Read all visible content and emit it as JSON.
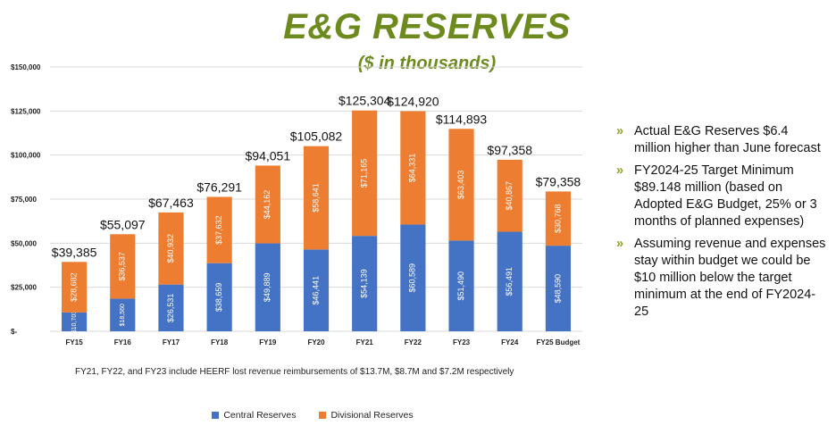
{
  "header": {
    "title": "E&G RESERVES",
    "subtitle": "($ in thousands)"
  },
  "chart_data": {
    "type": "bar",
    "stacked": true,
    "categories": [
      "FY15",
      "FY16",
      "FY17",
      "FY18",
      "FY19",
      "FY20",
      "FY21",
      "FY22",
      "FY23",
      "FY24",
      "FY25 Budget"
    ],
    "series": [
      {
        "name": "Central Reserves",
        "color": "#4472c4",
        "values": [
          10703,
          18560,
          26531,
          38659,
          49889,
          46441,
          54139,
          60589,
          51490,
          56491,
          48590
        ],
        "labels": [
          "$10,703",
          "$18,560",
          "$26,531",
          "$38,659",
          "$49,889",
          "$46,441",
          "$54,139",
          "$60,589",
          "$51,490",
          "$56,491",
          "$48,590"
        ]
      },
      {
        "name": "Divisional Reserves",
        "color": "#ed7d31",
        "values": [
          28682,
          36537,
          40932,
          37632,
          44162,
          58641,
          71165,
          64331,
          63403,
          40867,
          30768
        ],
        "labels": [
          "$28,682",
          "$36,537",
          "$40,932",
          "$37,632",
          "$44,162",
          "$58,641",
          "$71,165",
          "$64,331",
          "$63,403",
          "$40,867",
          "$30,768"
        ]
      }
    ],
    "totals": [
      39385,
      55097,
      67463,
      76291,
      94051,
      105082,
      125304,
      124920,
      114893,
      97358,
      79358
    ],
    "total_labels": [
      "$39,385",
      "$55,097",
      "$67,463",
      "$76,291",
      "$94,051",
      "$105,082",
      "$125,304",
      "$124,920",
      "$114,893",
      "$97,358",
      "$79,358"
    ],
    "ylim": [
      0,
      150000
    ],
    "yticks": [
      0,
      25000,
      50000,
      75000,
      100000,
      125000,
      150000
    ],
    "ytick_labels": [
      "$-",
      "$25,000",
      "$50,000",
      "$75,000",
      "$100,000",
      "$125,000",
      "$150,000"
    ],
    "grid": true,
    "legend_position": "bottom"
  },
  "footnote": "FY21, FY22, and FY23 include HEERF lost revenue reimbursements of $13.7M, $8.7M and $7.2M respectively",
  "bullets": [
    "Actual E&G Reserves $6.4 million higher than June forecast",
    "FY2024-25 Target Minimum $89.148 million (based on Adopted E&G Budget, 25% or 3 months of planned expenses)",
    "Assuming revenue and expenses stay within budget we could be $10 million below the target minimum at the end of FY2024-25"
  ],
  "bullet_marker": "»",
  "colors": {
    "title": "#6d8a1f",
    "central": "#4472c4",
    "divisional": "#ed7d31",
    "grid": "#d9d9d9"
  }
}
